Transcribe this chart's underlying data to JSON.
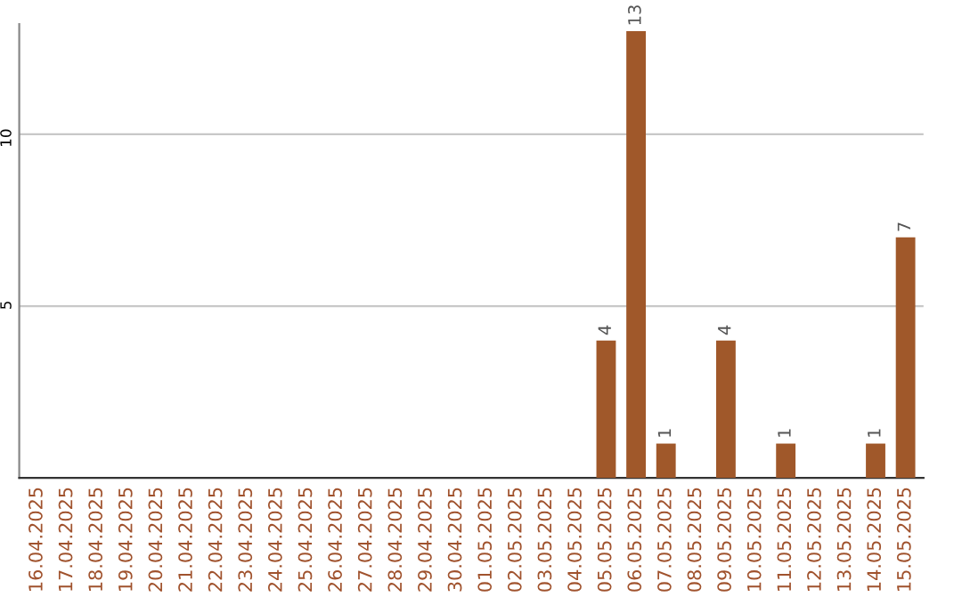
{
  "chart_data": {
    "type": "bar",
    "categories": [
      "16.04.2025",
      "17.04.2025",
      "18.04.2025",
      "19.04.2025",
      "20.04.2025",
      "21.04.2025",
      "22.04.2025",
      "23.04.2025",
      "24.04.2025",
      "25.04.2025",
      "26.04.2025",
      "27.04.2025",
      "28.04.2025",
      "29.04.2025",
      "30.04.2025",
      "01.05.2025",
      "02.05.2025",
      "03.05.2025",
      "04.05.2025",
      "05.05.2025",
      "06.05.2025",
      "07.05.2025",
      "08.05.2025",
      "09.05.2025",
      "10.05.2025",
      "11.05.2025",
      "12.05.2025",
      "13.05.2025",
      "14.05.2025",
      "15.05.2025"
    ],
    "values": [
      0,
      0,
      0,
      0,
      0,
      0,
      0,
      0,
      0,
      0,
      0,
      0,
      0,
      0,
      0,
      0,
      0,
      0,
      0,
      4,
      13,
      1,
      0,
      4,
      0,
      1,
      0,
      0,
      1,
      7
    ],
    "value_labels": [
      null,
      null,
      null,
      null,
      null,
      null,
      null,
      null,
      null,
      null,
      null,
      null,
      null,
      null,
      null,
      null,
      null,
      null,
      null,
      "4",
      "13",
      "1",
      null,
      "4",
      null,
      "1",
      null,
      null,
      "1",
      "7"
    ],
    "color": "#a0582a",
    "ylim": [
      0,
      13.2
    ],
    "yticks": [
      5,
      10
    ],
    "grid": "y"
  }
}
